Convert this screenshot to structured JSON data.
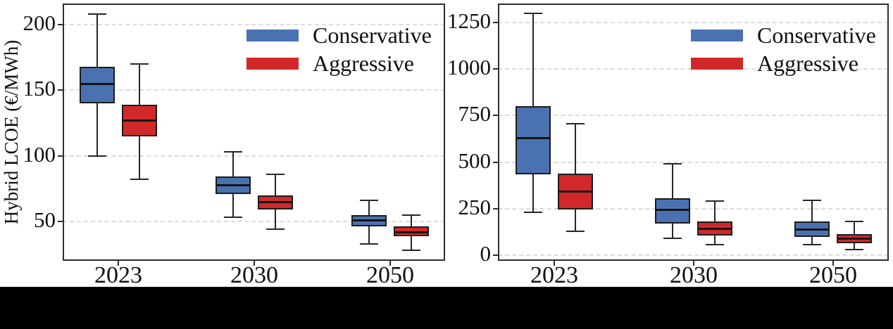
{
  "figure": {
    "left_panel": {
      "ylabel": "Hybrid LCOE (€/MWh)"
    },
    "right_panel": {
      "ylabel": ""
    },
    "legend": {
      "items": [
        {
          "label": "Conservative",
          "color": "#4A72B0"
        },
        {
          "label": "Aggressive",
          "color": "#D12929"
        }
      ]
    },
    "colors": {
      "conservative": "#4A72B0",
      "aggressive": "#D12929",
      "box_edge": "#1c1c1c",
      "gridline": "#dcdcdc",
      "spine": "#2e2e2e"
    }
  },
  "chart_data": [
    {
      "type": "box",
      "panel": "left",
      "title": "",
      "xlabel": "",
      "ylabel": "Hybrid LCOE (€/MWh)",
      "categories": [
        "2023",
        "2030",
        "2050"
      ],
      "yticks": [
        50,
        100,
        150,
        200
      ],
      "ylim": [
        20,
        216
      ],
      "grid": "horizontal-dashed",
      "legend_position": "upper right",
      "series": [
        {
          "name": "Conservative",
          "color": "#4A72B0",
          "boxes": [
            {
              "whisker_low": 100,
              "q1": 140,
              "median": 155,
              "q3": 168,
              "whisker_high": 208
            },
            {
              "whisker_low": 53,
              "q1": 71,
              "median": 78,
              "q3": 84,
              "whisker_high": 103
            },
            {
              "whisker_low": 33,
              "q1": 46,
              "median": 51,
              "q3": 55,
              "whisker_high": 66
            }
          ]
        },
        {
          "name": "Aggressive",
          "color": "#D12929",
          "boxes": [
            {
              "whisker_low": 82,
              "q1": 115,
              "median": 127,
              "q3": 139,
              "whisker_high": 170
            },
            {
              "whisker_low": 44,
              "q1": 59,
              "median": 65,
              "q3": 70,
              "whisker_high": 86
            },
            {
              "whisker_low": 28,
              "q1": 39,
              "median": 42,
              "q3": 46,
              "whisker_high": 55
            }
          ]
        }
      ]
    },
    {
      "type": "box",
      "panel": "right",
      "title": "",
      "xlabel": "",
      "ylabel": "",
      "categories": [
        "2023",
        "2030",
        "2050"
      ],
      "yticks": [
        0,
        250,
        500,
        750,
        1000,
        1250
      ],
      "ylim": [
        -30,
        1352
      ],
      "grid": "horizontal-dashed",
      "legend_position": "upper right",
      "series": [
        {
          "name": "Conservative",
          "color": "#4A72B0",
          "boxes": [
            {
              "whisker_low": 230,
              "q1": 435,
              "median": 630,
              "q3": 800,
              "whisker_high": 1300
            },
            {
              "whisker_low": 90,
              "q1": 170,
              "median": 245,
              "q3": 305,
              "whisker_high": 490
            },
            {
              "whisker_low": 55,
              "q1": 100,
              "median": 140,
              "q3": 180,
              "whisker_high": 295
            }
          ]
        },
        {
          "name": "Aggressive",
          "color": "#D12929",
          "boxes": [
            {
              "whisker_low": 130,
              "q1": 245,
              "median": 345,
              "q3": 440,
              "whisker_high": 705
            },
            {
              "whisker_low": 55,
              "q1": 105,
              "median": 145,
              "q3": 180,
              "whisker_high": 290
            },
            {
              "whisker_low": 30,
              "q1": 65,
              "median": 90,
              "q3": 115,
              "whisker_high": 180
            }
          ]
        }
      ]
    }
  ]
}
